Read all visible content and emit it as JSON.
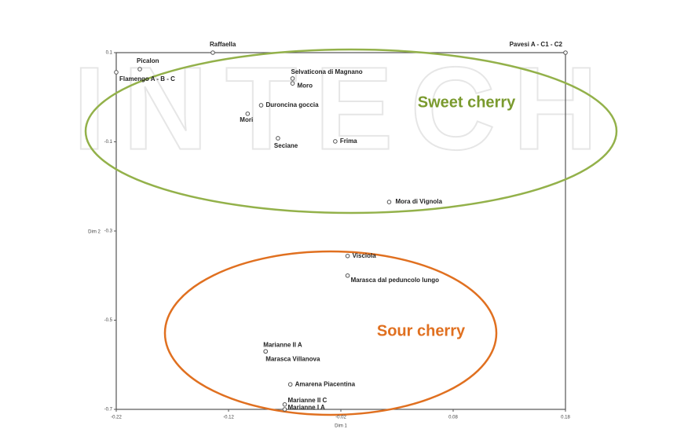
{
  "chart_data": {
    "type": "scatter",
    "watermark": "INTECH",
    "x_label": "Dim 1",
    "y_label": "Dim 2",
    "xlim": [
      -0.22,
      0.18
    ],
    "ylim": [
      -0.7,
      0.1
    ],
    "xticks": [
      -0.22,
      -0.12,
      -0.02,
      0.08,
      0.18
    ],
    "yticks": [
      0.1,
      -0.1,
      -0.3,
      -0.5,
      -0.7
    ],
    "color": "#555555",
    "labels": [
      "Picalon",
      "Flamengo A - B - C",
      "Raffaella",
      "Pavesi A - C1 - C2",
      "Selvaticona di Magnano",
      "Moro",
      "Duroncina goccia",
      "Mori",
      "Seciane",
      "Frima",
      "Mora di Vignola",
      "Visciola",
      "Marasca dal peduncolo lungo",
      "Marianne II A",
      "Marasca Villanova",
      "Amarena Piacentina",
      "Marianne II C",
      "Marianne I A"
    ],
    "x": [
      -0.199,
      -0.22,
      -0.134,
      0.18,
      -0.063,
      -0.063,
      -0.091,
      -0.103,
      -0.076,
      -0.025,
      0.023,
      -0.014,
      -0.014,
      -0.087,
      -0.087,
      -0.065,
      -0.07,
      -0.07
    ],
    "y": [
      0.063,
      0.056,
      0.1,
      0.1,
      0.042,
      0.031,
      -0.018,
      -0.037,
      -0.092,
      -0.099,
      -0.235,
      -0.356,
      -0.4,
      -0.57,
      -0.57,
      -0.644,
      -0.689,
      -0.7
    ],
    "annotations": [
      {
        "text": "Sweet cherry",
        "color": "#7a9a2e"
      },
      {
        "text": "Sour cherry",
        "color": "#e07020"
      }
    ]
  }
}
